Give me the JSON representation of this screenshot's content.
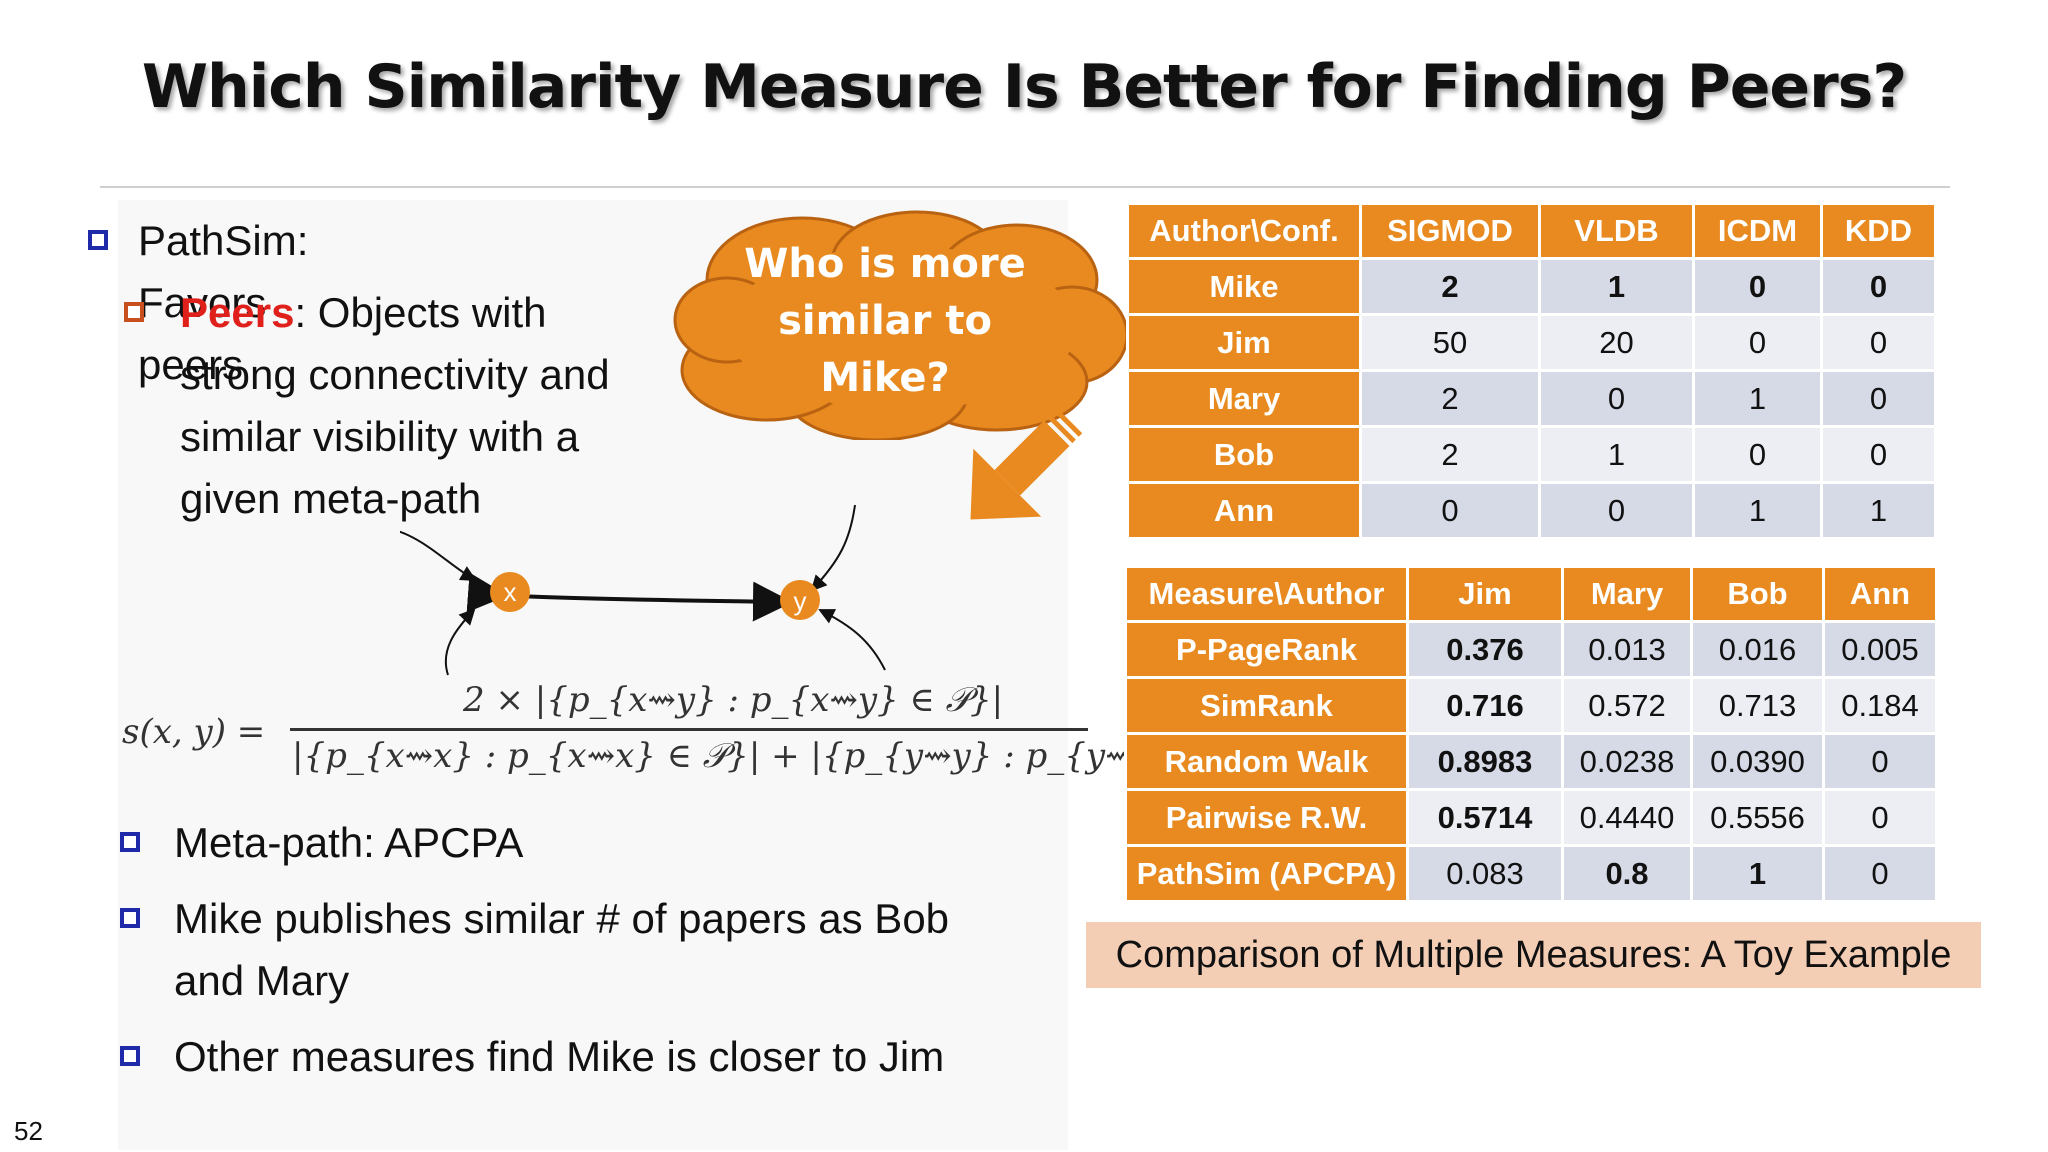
{
  "title": "Which Similarity Measure Is Better for Finding Peers?",
  "bullets": {
    "pathsim": "PathSim: Favors peers",
    "peers_label": "Peers",
    "peers_lines": [
      ": Objects with",
      "strong connectivity and",
      "similar visibility with a",
      "given meta-path"
    ],
    "meta_path": "Meta-path: APCPA",
    "mike_line1": "Mike publishes similar # of papers as Bob",
    "mike_line2": "and Mary",
    "other": "Other measures find Mike is closer to Jim"
  },
  "cloud": {
    "lines": [
      "Who is more",
      "similar to",
      "Mike?"
    ]
  },
  "diagram": {
    "node_x": "x",
    "node_y": "y"
  },
  "formula": {
    "lhs": "s(x, y) =",
    "numerator": "2 × |{p_{x⇝y} : p_{x⇝y} ∈ 𝒫}|",
    "denominator": "|{p_{x⇝x} : p_{x⇝x} ∈ 𝒫}| + |{p_{y⇝y} : p_{y⇝y} ∈ 𝒫}|"
  },
  "table1": {
    "headers": [
      "Author\\Conf.",
      "SIGMOD",
      "VLDB",
      "ICDM",
      "KDD"
    ],
    "rows": [
      {
        "name": "Mike",
        "values": [
          "2",
          "1",
          "0",
          "0"
        ]
      },
      {
        "name": "Jim",
        "values": [
          "50",
          "20",
          "0",
          "0"
        ]
      },
      {
        "name": "Mary",
        "values": [
          "2",
          "0",
          "1",
          "0"
        ]
      },
      {
        "name": "Bob",
        "values": [
          "2",
          "1",
          "0",
          "0"
        ]
      },
      {
        "name": "Ann",
        "values": [
          "0",
          "0",
          "1",
          "1"
        ]
      }
    ]
  },
  "table2": {
    "headers": [
      "Measure\\Author",
      "Jim",
      "Mary",
      "Bob",
      "Ann"
    ],
    "rows": [
      {
        "name": "P-PageRank",
        "values": [
          "0.376",
          "0.013",
          "0.016",
          "0.005"
        ]
      },
      {
        "name": "SimRank",
        "values": [
          "0.716",
          "0.572",
          "0.713",
          "0.184"
        ]
      },
      {
        "name": "Random Walk",
        "values": [
          "0.8983",
          "0.0238",
          "0.0390",
          "0"
        ]
      },
      {
        "name": "Pairwise R.W.",
        "values": [
          "0.5714",
          "0.4440",
          "0.5556",
          "0"
        ]
      },
      {
        "name": "PathSim (APCPA)",
        "values": [
          "0.083",
          "0.8",
          "1",
          "0"
        ]
      }
    ]
  },
  "caption": "Comparison of Multiple Measures: A Toy Example",
  "page_number": "52",
  "colors": {
    "accent_orange": "#e88a1f",
    "highlight_red": "#e0201a",
    "mike_yellow": "#ffe600",
    "bullet_blue": "#1e2aa8"
  }
}
